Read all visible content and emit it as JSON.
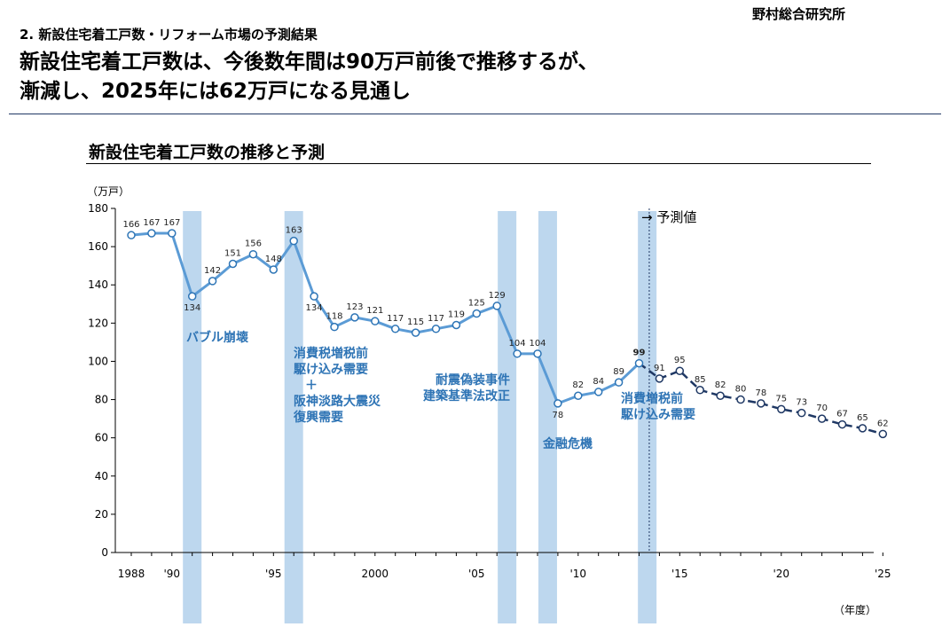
{
  "header": {
    "organization": "野村総合研究所",
    "section_title": "2. 新設住宅着工戸数・リフォーム市場の予測結果",
    "headline_line1": "新設住宅着工戸数は、今後数年間は90万戸前後で推移するが、",
    "headline_line2": "漸減し、2025年には62万戸になる見通し"
  },
  "chart_data": {
    "type": "line",
    "title": "新設住宅着工戸数の推移と予測",
    "ylabel": "（万戸）",
    "xlabel": "（年度）",
    "ylim": [
      0,
      180
    ],
    "y_ticks": [
      0,
      20,
      40,
      60,
      80,
      100,
      120,
      140,
      160,
      180
    ],
    "x_ticks": [
      {
        "year": 1988,
        "label": "1988"
      },
      {
        "year": 1990,
        "label": "'90"
      },
      {
        "year": 1995,
        "label": "'95"
      },
      {
        "year": 2000,
        "label": "2000"
      },
      {
        "year": 2005,
        "label": "'05"
      },
      {
        "year": 2010,
        "label": "'10"
      },
      {
        "year": 2015,
        "label": "'15"
      },
      {
        "year": 2020,
        "label": "'20"
      },
      {
        "year": 2025,
        "label": "'25"
      }
    ],
    "series": [
      {
        "kind": "actual",
        "x": [
          1988,
          1989,
          1990,
          1991,
          1992,
          1993,
          1994,
          1995,
          1996,
          1997,
          1998,
          1999,
          2000,
          2001,
          2002,
          2003,
          2004,
          2005,
          2006,
          2007,
          2008,
          2009,
          2010,
          2011,
          2012,
          2013
        ],
        "values": [
          166,
          167,
          167,
          134,
          142,
          151,
          156,
          148,
          163,
          134,
          118,
          123,
          121,
          117,
          115,
          117,
          119,
          125,
          129,
          104,
          104,
          78,
          82,
          84,
          89,
          99
        ]
      },
      {
        "kind": "forecast",
        "x": [
          2013,
          2014,
          2015,
          2016,
          2017,
          2018,
          2019,
          2020,
          2021,
          2022,
          2023,
          2024,
          2025
        ],
        "values": [
          99,
          91,
          95,
          85,
          82,
          80,
          78,
          75,
          73,
          70,
          67,
          65,
          62
        ]
      }
    ],
    "data_labels": [
      {
        "year": 1988,
        "label": "166"
      },
      {
        "year": 1989,
        "label": "167"
      },
      {
        "year": 1990,
        "label": "167"
      },
      {
        "year": 1991,
        "label": "134"
      },
      {
        "year": 1992,
        "label": "142"
      },
      {
        "year": 1993,
        "label": "151"
      },
      {
        "year": 1994,
        "label": "156"
      },
      {
        "year": 1995,
        "label": "148"
      },
      {
        "year": 1996,
        "label": "163"
      },
      {
        "year": 1997,
        "label": "134"
      },
      {
        "year": 1998,
        "label": "118"
      },
      {
        "year": 1999,
        "label": "123"
      },
      {
        "year": 2000,
        "label": "121"
      },
      {
        "year": 2001,
        "label": "117"
      },
      {
        "year": 2002,
        "label": "115"
      },
      {
        "year": 2003,
        "label": "117"
      },
      {
        "year": 2004,
        "label": "119"
      },
      {
        "year": 2005,
        "label": "125"
      },
      {
        "year": 2006,
        "label": "129"
      },
      {
        "year": 2007,
        "label": "104"
      },
      {
        "year": 2008,
        "label": "104"
      },
      {
        "year": 2009,
        "label": "78"
      },
      {
        "year": 2010,
        "label": "82"
      },
      {
        "year": 2011,
        "label": "84"
      },
      {
        "year": 2012,
        "label": "89"
      },
      {
        "year": 2013,
        "label": "99"
      },
      {
        "year": 2014,
        "label": "91"
      },
      {
        "year": 2015,
        "label": "95"
      },
      {
        "year": 2016,
        "label": "85"
      },
      {
        "year": 2017,
        "label": "82"
      },
      {
        "year": 2018,
        "label": "80"
      },
      {
        "year": 2019,
        "label": "78"
      },
      {
        "year": 2020,
        "label": "75"
      },
      {
        "year": 2021,
        "label": "73"
      },
      {
        "year": 2022,
        "label": "70"
      },
      {
        "year": 2023,
        "label": "67"
      },
      {
        "year": 2024,
        "label": "65"
      },
      {
        "year": 2025,
        "label": "62"
      }
    ],
    "event_bands": [
      {
        "year": 1991,
        "lines": [
          "バブル崩壊"
        ]
      },
      {
        "year": 1996,
        "lines": [
          "消費税増税前",
          "駆け込み需要",
          "＋",
          "阪神淡路大震災",
          "復興需要"
        ]
      },
      {
        "year": 2006.5,
        "lines": [
          "耐震偽装事件",
          "建築基準法改正"
        ]
      },
      {
        "year": 2008.5,
        "lines": [
          "金融危機"
        ]
      },
      {
        "year": 2013.4,
        "lines": [
          "消費増税前",
          "駆け込み需要"
        ]
      }
    ],
    "forecast_start_year": 2013.5,
    "forecast_label": "→ 予測値",
    "colors": {
      "line": "#5b9bd5",
      "forecast_line": "#1f3864",
      "band": "#bdd7ee",
      "event_text": "#2e74b5"
    }
  }
}
